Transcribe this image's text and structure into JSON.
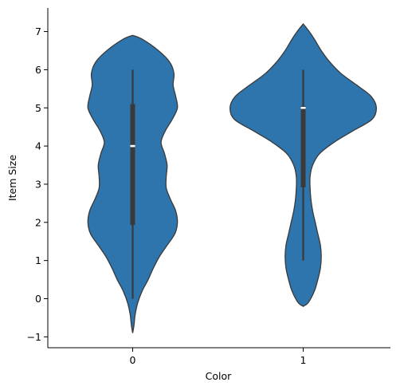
{
  "chart_data": {
    "type": "violin",
    "xlabel": "Color",
    "ylabel": "Item Size",
    "categories": [
      "0",
      "1"
    ],
    "ylim": [
      -1.3,
      7.6
    ],
    "yticks": [
      -1,
      0,
      1,
      2,
      3,
      4,
      5,
      6,
      7
    ],
    "color": "#2e74ad",
    "grid": false,
    "violins": [
      {
        "category": "0",
        "min": 0,
        "q1": 1.93,
        "median": 4,
        "q3": 5.1,
        "max": 6,
        "density": [
          [
            -0.9,
            0.0
          ],
          [
            -0.7,
            0.015
          ],
          [
            -0.4,
            0.03
          ],
          [
            -0.1,
            0.06
          ],
          [
            0.2,
            0.11
          ],
          [
            0.5,
            0.18
          ],
          [
            0.8,
            0.24
          ],
          [
            1.1,
            0.31
          ],
          [
            1.4,
            0.4
          ],
          [
            1.7,
            0.49
          ],
          [
            2.0,
            0.52
          ],
          [
            2.3,
            0.5
          ],
          [
            2.6,
            0.44
          ],
          [
            2.9,
            0.39
          ],
          [
            3.2,
            0.39
          ],
          [
            3.5,
            0.4
          ],
          [
            3.8,
            0.37
          ],
          [
            4.1,
            0.33
          ],
          [
            4.4,
            0.38
          ],
          [
            4.7,
            0.46
          ],
          [
            5.0,
            0.52
          ],
          [
            5.3,
            0.5
          ],
          [
            5.6,
            0.47
          ],
          [
            5.9,
            0.48
          ],
          [
            6.2,
            0.43
          ],
          [
            6.5,
            0.3
          ],
          [
            6.8,
            0.11
          ],
          [
            6.9,
            0.0
          ]
        ]
      },
      {
        "category": "1",
        "min": 1,
        "q1": 2.92,
        "median": 5,
        "q3": 5.05,
        "max": 6,
        "density": [
          [
            -0.2,
            0.0
          ],
          [
            -0.1,
            0.06
          ],
          [
            0.2,
            0.13
          ],
          [
            0.5,
            0.17
          ],
          [
            0.8,
            0.2
          ],
          [
            1.1,
            0.21
          ],
          [
            1.4,
            0.2
          ],
          [
            1.7,
            0.17
          ],
          [
            2.0,
            0.14
          ],
          [
            2.3,
            0.11
          ],
          [
            2.6,
            0.09
          ],
          [
            2.9,
            0.08
          ],
          [
            3.2,
            0.08
          ],
          [
            3.5,
            0.11
          ],
          [
            3.8,
            0.19
          ],
          [
            4.1,
            0.36
          ],
          [
            4.4,
            0.58
          ],
          [
            4.7,
            0.8
          ],
          [
            5.0,
            0.85
          ],
          [
            5.3,
            0.79
          ],
          [
            5.6,
            0.62
          ],
          [
            5.9,
            0.44
          ],
          [
            6.2,
            0.31
          ],
          [
            6.5,
            0.21
          ],
          [
            6.8,
            0.13
          ],
          [
            7.0,
            0.07
          ],
          [
            7.2,
            0.0
          ]
        ]
      }
    ]
  }
}
